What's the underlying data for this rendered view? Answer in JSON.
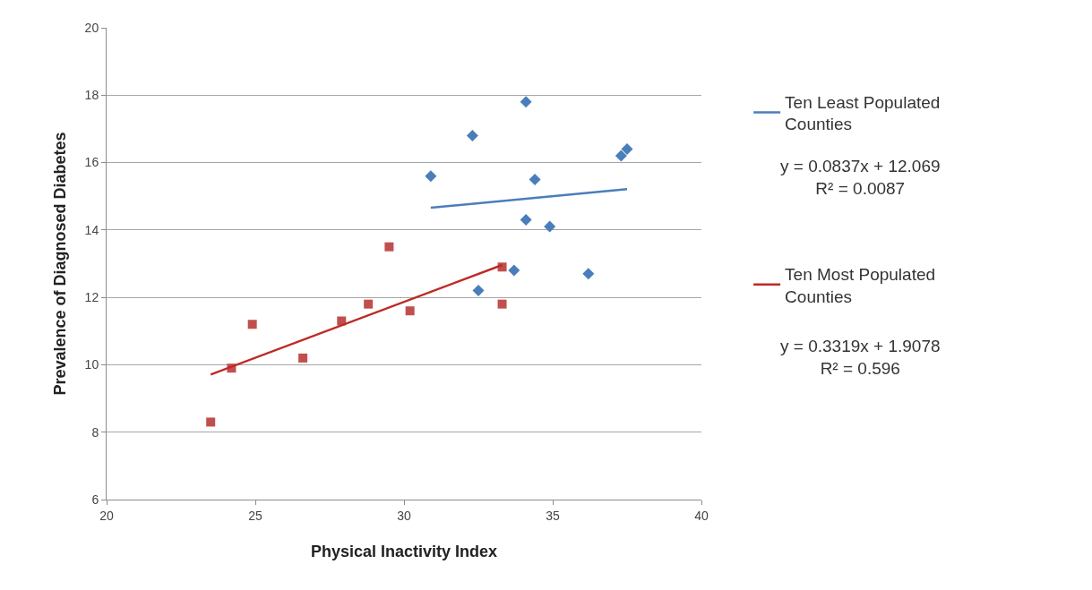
{
  "chart_data": {
    "type": "scatter",
    "xlabel": "Physical Inactivity Index",
    "ylabel": "Prevalence of Diagnosed Diabetes",
    "xlim": [
      20,
      40
    ],
    "xticks": [
      20,
      25,
      30,
      35,
      40
    ],
    "ylim": [
      6,
      20
    ],
    "yticks": [
      6,
      8,
      10,
      12,
      14,
      16,
      18,
      20
    ],
    "grid": "y",
    "legend": "right",
    "series": [
      {
        "marker": "diamond",
        "color": "#4a7ebb",
        "x": [
          30.9,
          32.3,
          34.1,
          34.4,
          37.3,
          37.5,
          34.1,
          34.9,
          33.7,
          32.5,
          36.2
        ],
        "values": [
          15.6,
          16.8,
          17.8,
          15.5,
          16.2,
          16.4,
          14.3,
          14.1,
          12.8,
          12.2,
          12.7
        ]
      },
      {
        "marker": "square",
        "color": "#c0504d",
        "x": [
          23.5,
          24.2,
          24.9,
          26.6,
          27.9,
          28.8,
          29.5,
          30.2,
          33.3,
          33.3
        ],
        "values": [
          8.3,
          9.9,
          11.2,
          10.2,
          11.3,
          11.8,
          13.5,
          11.6,
          12.9,
          11.8
        ]
      },
      {
        "type": "line",
        "name": "Ten Least Populated Counties",
        "color": "#4a7ebb",
        "x": [
          30.9,
          37.5
        ],
        "values": [
          14.66,
          15.21
        ]
      },
      {
        "type": "line",
        "name": "Ten Most Populated Counties",
        "color": "#be2a27",
        "x": [
          23.5,
          33.3
        ],
        "values": [
          9.71,
          12.96
        ]
      }
    ],
    "annotations": [
      "y = 0.0837x + 12.069\nR² = 0.0087",
      "y = 0.3319x + 1.9078\nR² = 0.596"
    ]
  }
}
